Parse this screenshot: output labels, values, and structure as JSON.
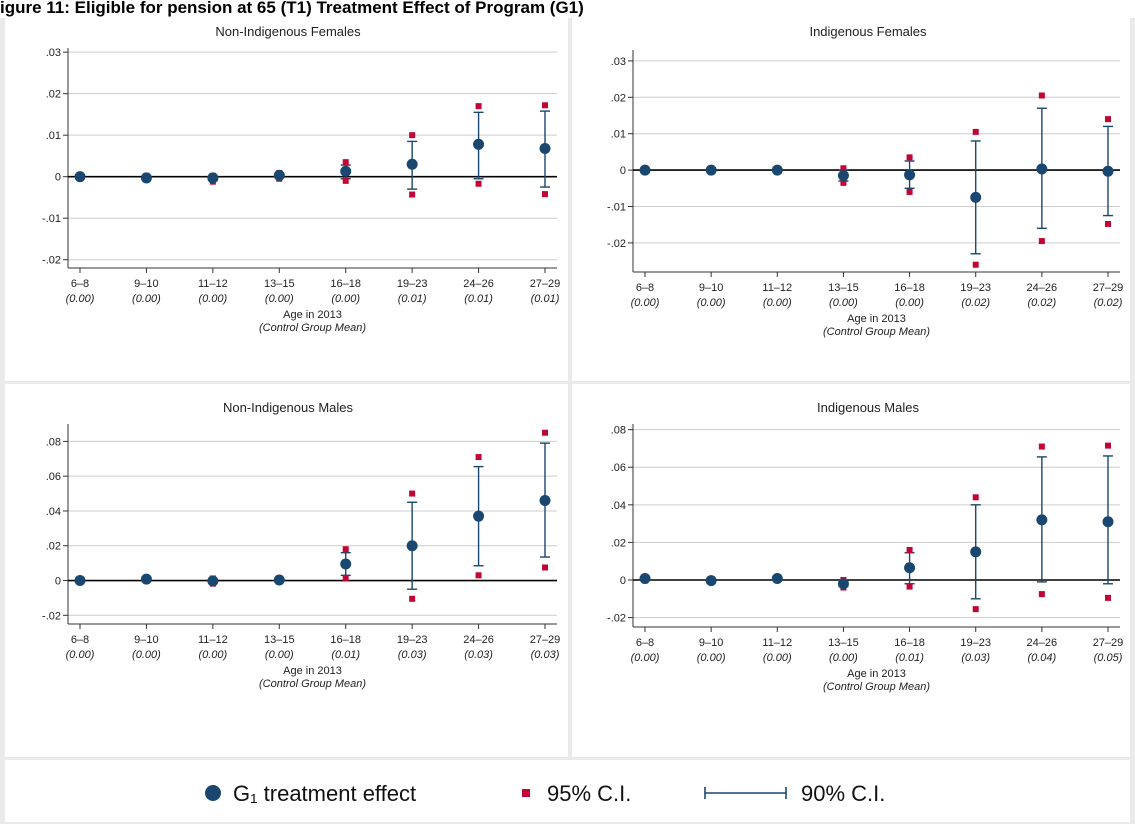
{
  "figure_title": "igure 11: Eligible for pension at 65 (T1) Treatment Effect of Program (G1)",
  "x_axis_label": "Age in 2013",
  "x_axis_sublabel": "(Control Group Mean)",
  "legend": {
    "point_label": "G₁ treatment effect",
    "ci95_label": "95% C.I.",
    "ci90_label": "90% C.I."
  },
  "colors": {
    "point": "#1a476f",
    "ci95": "#c10534",
    "ci90_bar": "#1a476f",
    "grid": "#cccccc",
    "zero_line": "#000000",
    "panel_bg": "#ffffff",
    "outer_bg": "#eaeaea"
  },
  "chart_data": [
    {
      "type": "scatter",
      "title": "Non-Indigenous Females",
      "categories": [
        "6–8",
        "9–10",
        "11–12",
        "13–15",
        "16–18",
        "19–23",
        "24–26",
        "27–29"
      ],
      "control_means": [
        "(0.00)",
        "(0.00)",
        "(0.00)",
        "(0.00)",
        "(0.00)",
        "(0.01)",
        "(0.01)",
        "(0.01)"
      ],
      "ylim": [
        -0.022,
        0.031
      ],
      "yticks": [
        -0.02,
        -0.01,
        0,
        0.01,
        0.02,
        0.03
      ],
      "ytick_labels": [
        "-.02",
        "-.01",
        "0",
        ".01",
        ".02",
        ".03"
      ],
      "grid": true,
      "series": [
        {
          "name": "G₁ treatment effect",
          "values": [
            0.0,
            -0.0003,
            -0.0003,
            0.0003,
            0.0013,
            0.003,
            0.0078,
            0.0068
          ]
        },
        {
          "name": "95% C.I.",
          "lower": [
            -0.0003,
            -0.0006,
            -0.0012,
            -0.0005,
            -0.001,
            -0.0043,
            -0.0017,
            -0.0042
          ],
          "upper": [
            0.0003,
            0.0002,
            0.0002,
            0.0009,
            0.0035,
            0.01,
            0.017,
            0.0172
          ]
        },
        {
          "name": "90% C.I.",
          "lower": [
            -0.0002,
            -0.0005,
            -0.0009,
            -0.0002,
            -0.0005,
            -0.003,
            -0.0005,
            -0.0025
          ],
          "upper": [
            0.0002,
            0.0,
            0.0,
            0.0007,
            0.0028,
            0.0085,
            0.0155,
            0.0158
          ]
        }
      ]
    },
    {
      "type": "scatter",
      "title": "Indigenous Females",
      "categories": [
        "6–8",
        "9–10",
        "11–12",
        "13–15",
        "16–18",
        "19–23",
        "24–26",
        "27–29"
      ],
      "control_means": [
        "(0.00)",
        "(0.00)",
        "(0.00)",
        "(0.00)",
        "(0.00)",
        "(0.02)",
        "(0.02)",
        "(0.02)"
      ],
      "ylim": [
        -0.028,
        0.033
      ],
      "yticks": [
        -0.02,
        -0.01,
        0,
        0.01,
        0.02,
        0.03
      ],
      "ytick_labels": [
        "-.02",
        "-.01",
        "0",
        ".01",
        ".02",
        ".03"
      ],
      "grid": true,
      "series": [
        {
          "name": "G₁ treatment effect",
          "values": [
            0.0,
            0.0,
            0.0,
            -0.0015,
            -0.0013,
            -0.0075,
            0.0003,
            -0.0003
          ]
        },
        {
          "name": "95% C.I.",
          "lower": [
            -0.0004,
            -0.0003,
            -0.0003,
            -0.0035,
            -0.006,
            -0.026,
            -0.0195,
            -0.0148
          ],
          "upper": [
            0.0004,
            0.0003,
            0.0003,
            0.0005,
            0.0035,
            0.0105,
            0.0205,
            0.014
          ]
        },
        {
          "name": "90% C.I.",
          "lower": [
            -0.0003,
            -0.0002,
            -0.0002,
            -0.003,
            -0.005,
            -0.023,
            -0.016,
            -0.0125
          ],
          "upper": [
            0.0003,
            0.0002,
            0.0002,
            0.0,
            0.0025,
            0.008,
            0.017,
            0.012
          ]
        }
      ]
    },
    {
      "type": "scatter",
      "title": "Non-Indigenous Males",
      "categories": [
        "6–8",
        "9–10",
        "11–12",
        "13–15",
        "16–18",
        "19–23",
        "24–26",
        "27–29"
      ],
      "control_means": [
        "(0.00)",
        "(0.00)",
        "(0.00)",
        "(0.00)",
        "(0.01)",
        "(0.03)",
        "(0.03)",
        "(0.03)"
      ],
      "ylim": [
        -0.025,
        0.09
      ],
      "yticks": [
        -0.02,
        0,
        0.02,
        0.04,
        0.06,
        0.08
      ],
      "ytick_labels": [
        "-.02",
        "0",
        ".02",
        ".04",
        ".06",
        ".08"
      ],
      "grid": true,
      "series": [
        {
          "name": "G₁ treatment effect",
          "values": [
            0.0,
            0.0008,
            -0.0003,
            0.0003,
            0.0095,
            0.02,
            0.037,
            0.046
          ]
        },
        {
          "name": "95% C.I.",
          "lower": [
            -0.0005,
            0.0,
            -0.0018,
            -0.0005,
            0.0015,
            -0.0105,
            0.003,
            0.0075
          ],
          "upper": [
            0.0005,
            0.0016,
            0.0012,
            0.0012,
            0.018,
            0.05,
            0.071,
            0.085
          ]
        },
        {
          "name": "90% C.I.",
          "lower": [
            -0.0004,
            0.0002,
            -0.0012,
            -0.0002,
            0.003,
            -0.005,
            0.0085,
            0.0135
          ],
          "upper": [
            0.0004,
            0.0014,
            0.0006,
            0.0008,
            0.016,
            0.045,
            0.0655,
            0.079
          ]
        }
      ]
    },
    {
      "type": "scatter",
      "title": "Indigenous Males",
      "categories": [
        "6–8",
        "9–10",
        "11–12",
        "13–15",
        "16–18",
        "19–23",
        "24–26",
        "27–29"
      ],
      "control_means": [
        "(0.00)",
        "(0.00)",
        "(0.00)",
        "(0.00)",
        "(0.01)",
        "(0.03)",
        "(0.04)",
        "(0.05)"
      ],
      "ylim": [
        -0.025,
        0.083
      ],
      "yticks": [
        -0.02,
        0,
        0.02,
        0.04,
        0.06,
        0.08
      ],
      "ytick_labels": [
        "-.02",
        "0",
        ".02",
        ".04",
        ".06",
        ".08"
      ],
      "grid": true,
      "series": [
        {
          "name": "G₁ treatment effect",
          "values": [
            0.0008,
            -0.0003,
            0.0008,
            -0.002,
            0.0065,
            0.015,
            0.032,
            0.031
          ]
        },
        {
          "name": "95% C.I.",
          "lower": [
            -0.0003,
            -0.0006,
            0.0,
            -0.004,
            -0.0035,
            -0.0155,
            -0.0075,
            -0.0095
          ],
          "upper": [
            0.0015,
            0.0002,
            0.0014,
            0.0,
            0.016,
            0.044,
            0.071,
            0.0715
          ]
        },
        {
          "name": "90% C.I.",
          "lower": [
            0.0,
            -0.0005,
            0.0003,
            -0.0035,
            -0.002,
            -0.01,
            -0.001,
            -0.002
          ],
          "upper": [
            0.0013,
            0.0,
            0.0012,
            -0.0005,
            0.0145,
            0.04,
            0.0655,
            0.066
          ]
        }
      ]
    }
  ]
}
